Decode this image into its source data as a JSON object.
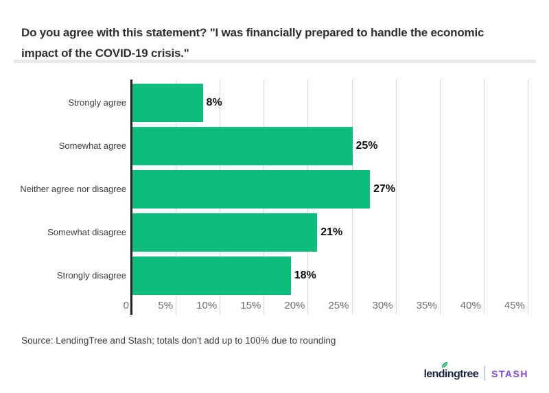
{
  "page": {
    "title_line1": "Do you agree with this statement? \"I was financially prepared to handle the economic",
    "title_line2": "impact of the COVID-19 crisis.\"",
    "source": "Source: LendingTree and Stash; totals don't add up to 100% due to rounding"
  },
  "chart_data": {
    "type": "bar",
    "orientation": "horizontal",
    "title": "Do you agree with this statement? \"I was financially prepared to handle the economic impact of the COVID-19 crisis.\"",
    "categories": [
      "Strongly agree",
      "Somewhat agree",
      "Neither agree nor disagree",
      "Somewhat disagree",
      "Strongly disagree"
    ],
    "values": [
      8,
      25,
      27,
      21,
      18
    ],
    "value_labels": [
      "8%",
      "25%",
      "27%",
      "21%",
      "18%"
    ],
    "x_tick_values": [
      0,
      5,
      10,
      15,
      20,
      25,
      30,
      35,
      40,
      45
    ],
    "x_tick_labels": [
      "0",
      "5%",
      "10%",
      "15%",
      "20%",
      "25%",
      "30%",
      "35%",
      "40%",
      "45%"
    ],
    "xlim": [
      0,
      45
    ],
    "grid": true,
    "legend": "none",
    "bar_color": "#0dbd7b"
  },
  "footer": {
    "lendingtree_label": "lendingtree",
    "stash_label": "STASH"
  },
  "colors": {
    "bar": "#0dbd7b",
    "gridline": "#d5d5d5",
    "axis": "#1f1f1f",
    "title_text": "#2f2f2f",
    "tick_text": "#6e6e6e",
    "category_text": "#3c3c3c",
    "value_text": "#0d0d0d",
    "title_divider": "#e9e9e9",
    "lendingtree_navy": "#15233f",
    "leaf_green": "#21b573",
    "stash_purple": "#8644e5"
  }
}
